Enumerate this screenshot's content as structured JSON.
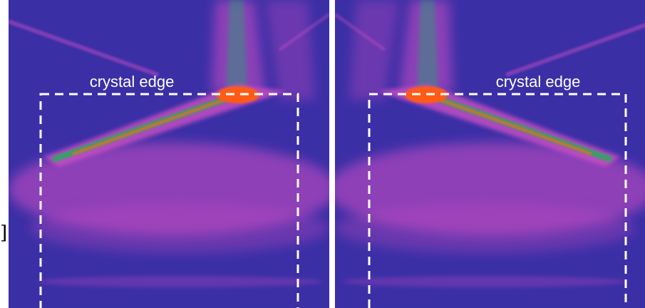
{
  "panels": [
    {
      "label": "crystal edge"
    },
    {
      "label": "crystal edge"
    }
  ],
  "fragment": "]"
}
